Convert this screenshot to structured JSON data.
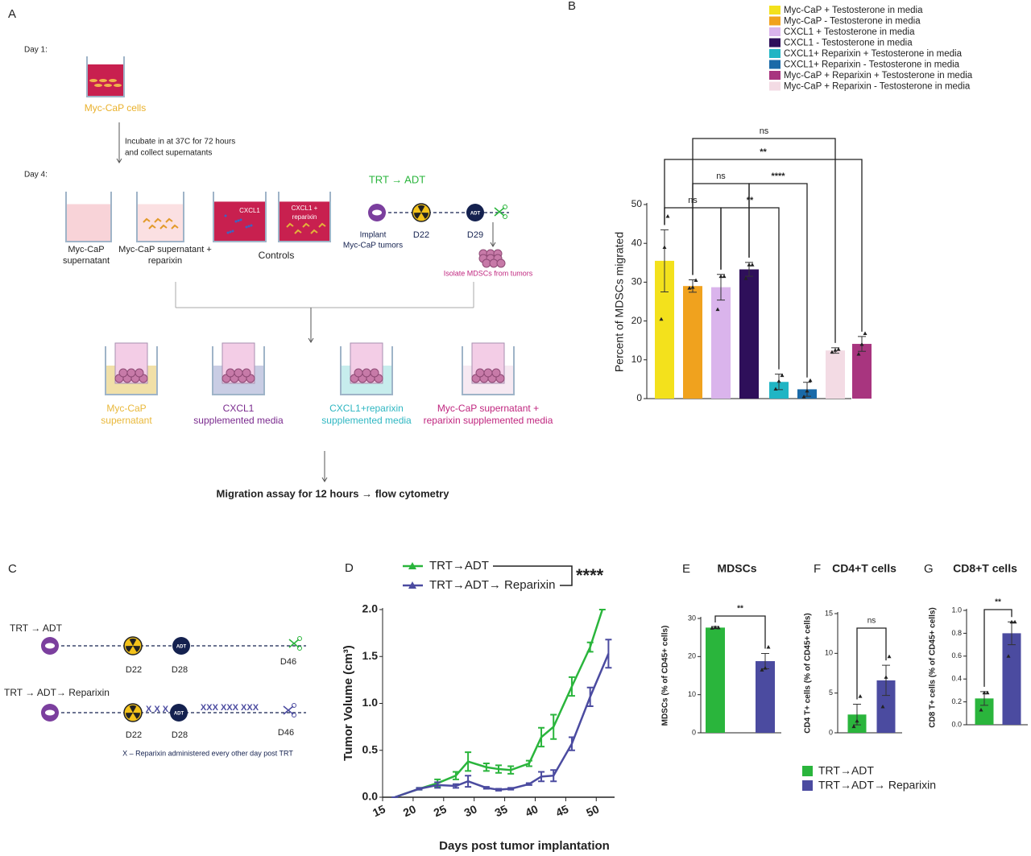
{
  "figure_a": {
    "label": "A",
    "day1": "Day 1:",
    "cells": "Myc-CaP cells",
    "incubate": [
      "Incubate in at 37C for 72 hours",
      "and collect supernatants"
    ],
    "day4": "Day 4:",
    "top_wells": [
      [
        "Myc-CaP",
        "supernatant"
      ],
      [
        "Myc-CaP supernatant +",
        "reparixin"
      ]
    ],
    "controls": "Controls",
    "control_tags": [
      [
        "CXCL1"
      ],
      [
        "CXCL1 +",
        "reparixin"
      ]
    ],
    "trt_title": "TRT → ADT",
    "implant": [
      "Implant",
      "Myc-CaP tumors"
    ],
    "d22": "D22",
    "adt": "ADT",
    "d29": "D29",
    "isolate": "Isolate MDSCs from tumors",
    "bottom_wells": [
      [
        "Myc-CaP",
        "supernatant"
      ],
      [
        "CXCL1",
        "supplemented media"
      ],
      [
        "CXCL1+reparixin",
        "supplemented media"
      ],
      [
        "Myc-CaP supernatant +",
        "reparixin supplemented media"
      ]
    ],
    "assay": "Migration assay for 12 hours → flow cytometry"
  },
  "figure_c": {
    "label": "C",
    "row1": "TRT → ADT",
    "row2": "TRT → ADT→ Reparixin",
    "days": [
      "D22",
      "D28",
      "D46"
    ],
    "adt": "ADT",
    "x_marks": [
      "X X X",
      "XXX XXX XXX"
    ],
    "note": "X – Reparixin administered every other day post TRT"
  },
  "legend_efg": {
    "names": [
      "TRT→ADT",
      "TRT→ADT→ Reparixin"
    ],
    "colors": [
      "#2ab53c",
      "#4b4ba0"
    ]
  },
  "chart_data": [
    {
      "type": "bar",
      "label": "B",
      "ylabel": "Percent of MDSCs migrated",
      "ylim": [
        0,
        50
      ],
      "yticks": [
        0,
        10,
        20,
        30,
        40,
        50
      ],
      "series": [
        {
          "name": "Myc-CaP + Testosterone in media",
          "color": "#f3e11c",
          "values": [
            35.5
          ],
          "errors": [
            8
          ],
          "points": [
            20.5,
            39,
            47
          ]
        },
        {
          "name": "Myc-CaP - Testosterone in media",
          "color": "#f0a21e",
          "values": [
            29
          ],
          "errors": [
            1.6
          ],
          "points": [
            28.5,
            28.7,
            30.5
          ]
        },
        {
          "name": "CXCL1 + Testosterone in media",
          "color": "#dab4ec",
          "values": [
            28.7
          ],
          "errors": [
            3.3
          ],
          "points": [
            23,
            31.5,
            31.5
          ]
        },
        {
          "name": "CXCL1 - Testosterone in media",
          "color": "#2e0f5a",
          "values": [
            33.3
          ],
          "errors": [
            1.8
          ],
          "points": [
            31,
            34.5,
            34.5
          ]
        },
        {
          "name": "CXCL1+ Reparixin + Testosterone in media",
          "color": "#20b5c4",
          "values": [
            4.3
          ],
          "errors": [
            2
          ],
          "points": [
            2.5,
            4.5,
            6
          ]
        },
        {
          "name": "CXCL1+ Reparixin - Testosterone in media",
          "color": "#1a6aa8",
          "values": [
            2.4
          ],
          "errors": [
            1.8
          ],
          "points": [
            0.5,
            2,
            4.7
          ]
        },
        {
          "name": "Myc-CaP + Reparixin + Testosterone in media",
          "color": "#a8357f",
          "values": [
            14.1
          ],
          "errors": [
            1.9
          ],
          "points": [
            11.5,
            14,
            16.8
          ]
        },
        {
          "name": "Myc-CaP + Reparixin - Testosterone in media",
          "color": "#f3dbe4",
          "values": [
            12.4
          ],
          "errors": [
            0.7
          ],
          "points": [
            12,
            12.5,
            12.7
          ]
        }
      ],
      "annotations": [
        "ns",
        "**",
        "ns",
        "****",
        "ns",
        "**"
      ]
    },
    {
      "type": "line",
      "label": "D",
      "ylabel": "Tumor Volume (cm³)",
      "xlabel": "Days post tumor implantation",
      "xlim": [
        15,
        53
      ],
      "xticks": [
        15,
        20,
        25,
        30,
        35,
        40,
        45,
        50
      ],
      "ylim": [
        0,
        2
      ],
      "yticks": [
        {
          "value": 0,
          "label": "0.0"
        },
        0.5,
        {
          "value": 1,
          "label": "1.0"
        },
        1.5,
        {
          "value": 2,
          "label": "2.0"
        }
      ],
      "series": [
        {
          "name": "TRT→ADT",
          "color": "#2ab53c",
          "x": [
            17,
            21,
            24,
            27,
            29,
            32,
            34,
            36,
            39,
            41,
            43,
            46,
            49,
            51
          ],
          "values": [
            0,
            0.09,
            0.15,
            0.23,
            0.38,
            0.32,
            0.3,
            0.29,
            0.36,
            0.64,
            0.75,
            1.18,
            1.6,
            2.0
          ],
          "errors": [
            0,
            0.01,
            0.04,
            0.04,
            0.1,
            0.04,
            0.04,
            0.04,
            0.03,
            0.1,
            0.13,
            0.1,
            0.05,
            0
          ]
        },
        {
          "name": "TRT→ADT→ Reparixin",
          "color": "#4b4ba0",
          "x": [
            17,
            21,
            24,
            27,
            29,
            32,
            34,
            36,
            39,
            41,
            43,
            46,
            49,
            52
          ],
          "values": [
            0,
            0.09,
            0.13,
            0.12,
            0.17,
            0.1,
            0.08,
            0.09,
            0.14,
            0.22,
            0.23,
            0.57,
            1.07,
            1.53
          ],
          "errors": [
            0,
            0.01,
            0.03,
            0.02,
            0.06,
            0.01,
            0.01,
            0.01,
            0.01,
            0.05,
            0.06,
            0.07,
            0.1,
            0.15
          ]
        }
      ],
      "annotation": "****"
    },
    {
      "type": "bar",
      "label": "E",
      "title": "MDSCs",
      "ylabel": "MDSCs (% of CD45+ cells)",
      "ylim": [
        0,
        30
      ],
      "yticks": [
        0,
        10,
        20,
        30
      ],
      "series": [
        {
          "values": [
            27.6
          ],
          "errors": [
            0.3
          ],
          "points": [
            27.5,
            27.7,
            27.6
          ]
        },
        {
          "values": [
            18.8
          ],
          "errors": [
            2
          ],
          "points": [
            16.5,
            17,
            22.5
          ]
        }
      ],
      "annotations": [
        "**"
      ]
    },
    {
      "type": "bar",
      "label": "F",
      "title": "CD4+T cells",
      "ylabel": "CD4 T+ cells (% of CD45+ cells)",
      "ylim": [
        0,
        15
      ],
      "yticks": [
        0,
        5,
        10,
        15
      ],
      "series": [
        {
          "values": [
            2.3
          ],
          "errors": [
            1.3
          ],
          "points": [
            0.8,
            1.5,
            4.6
          ]
        },
        {
          "values": [
            6.6
          ],
          "errors": [
            1.9
          ],
          "points": [
            3.3,
            7,
            9.6
          ]
        }
      ],
      "annotations": [
        "ns"
      ]
    },
    {
      "type": "bar",
      "label": "G",
      "title": "CD8+T cells",
      "ylabel": "CD8 T+ cells (% of CD45+ cells)",
      "ylim": [
        0,
        1
      ],
      "yticks": [
        {
          "value": 0,
          "label": "0.0"
        },
        0.2,
        0.4,
        0.6,
        0.8,
        {
          "value": 1,
          "label": "1.0"
        }
      ],
      "series": [
        {
          "values": [
            0.23
          ],
          "errors": [
            0.06
          ],
          "points": [
            0.13,
            0.28,
            0.28
          ]
        },
        {
          "values": [
            0.8
          ],
          "errors": [
            0.1
          ],
          "points": [
            0.6,
            0.9,
            0.9
          ]
        }
      ],
      "annotations": [
        "**"
      ]
    }
  ]
}
